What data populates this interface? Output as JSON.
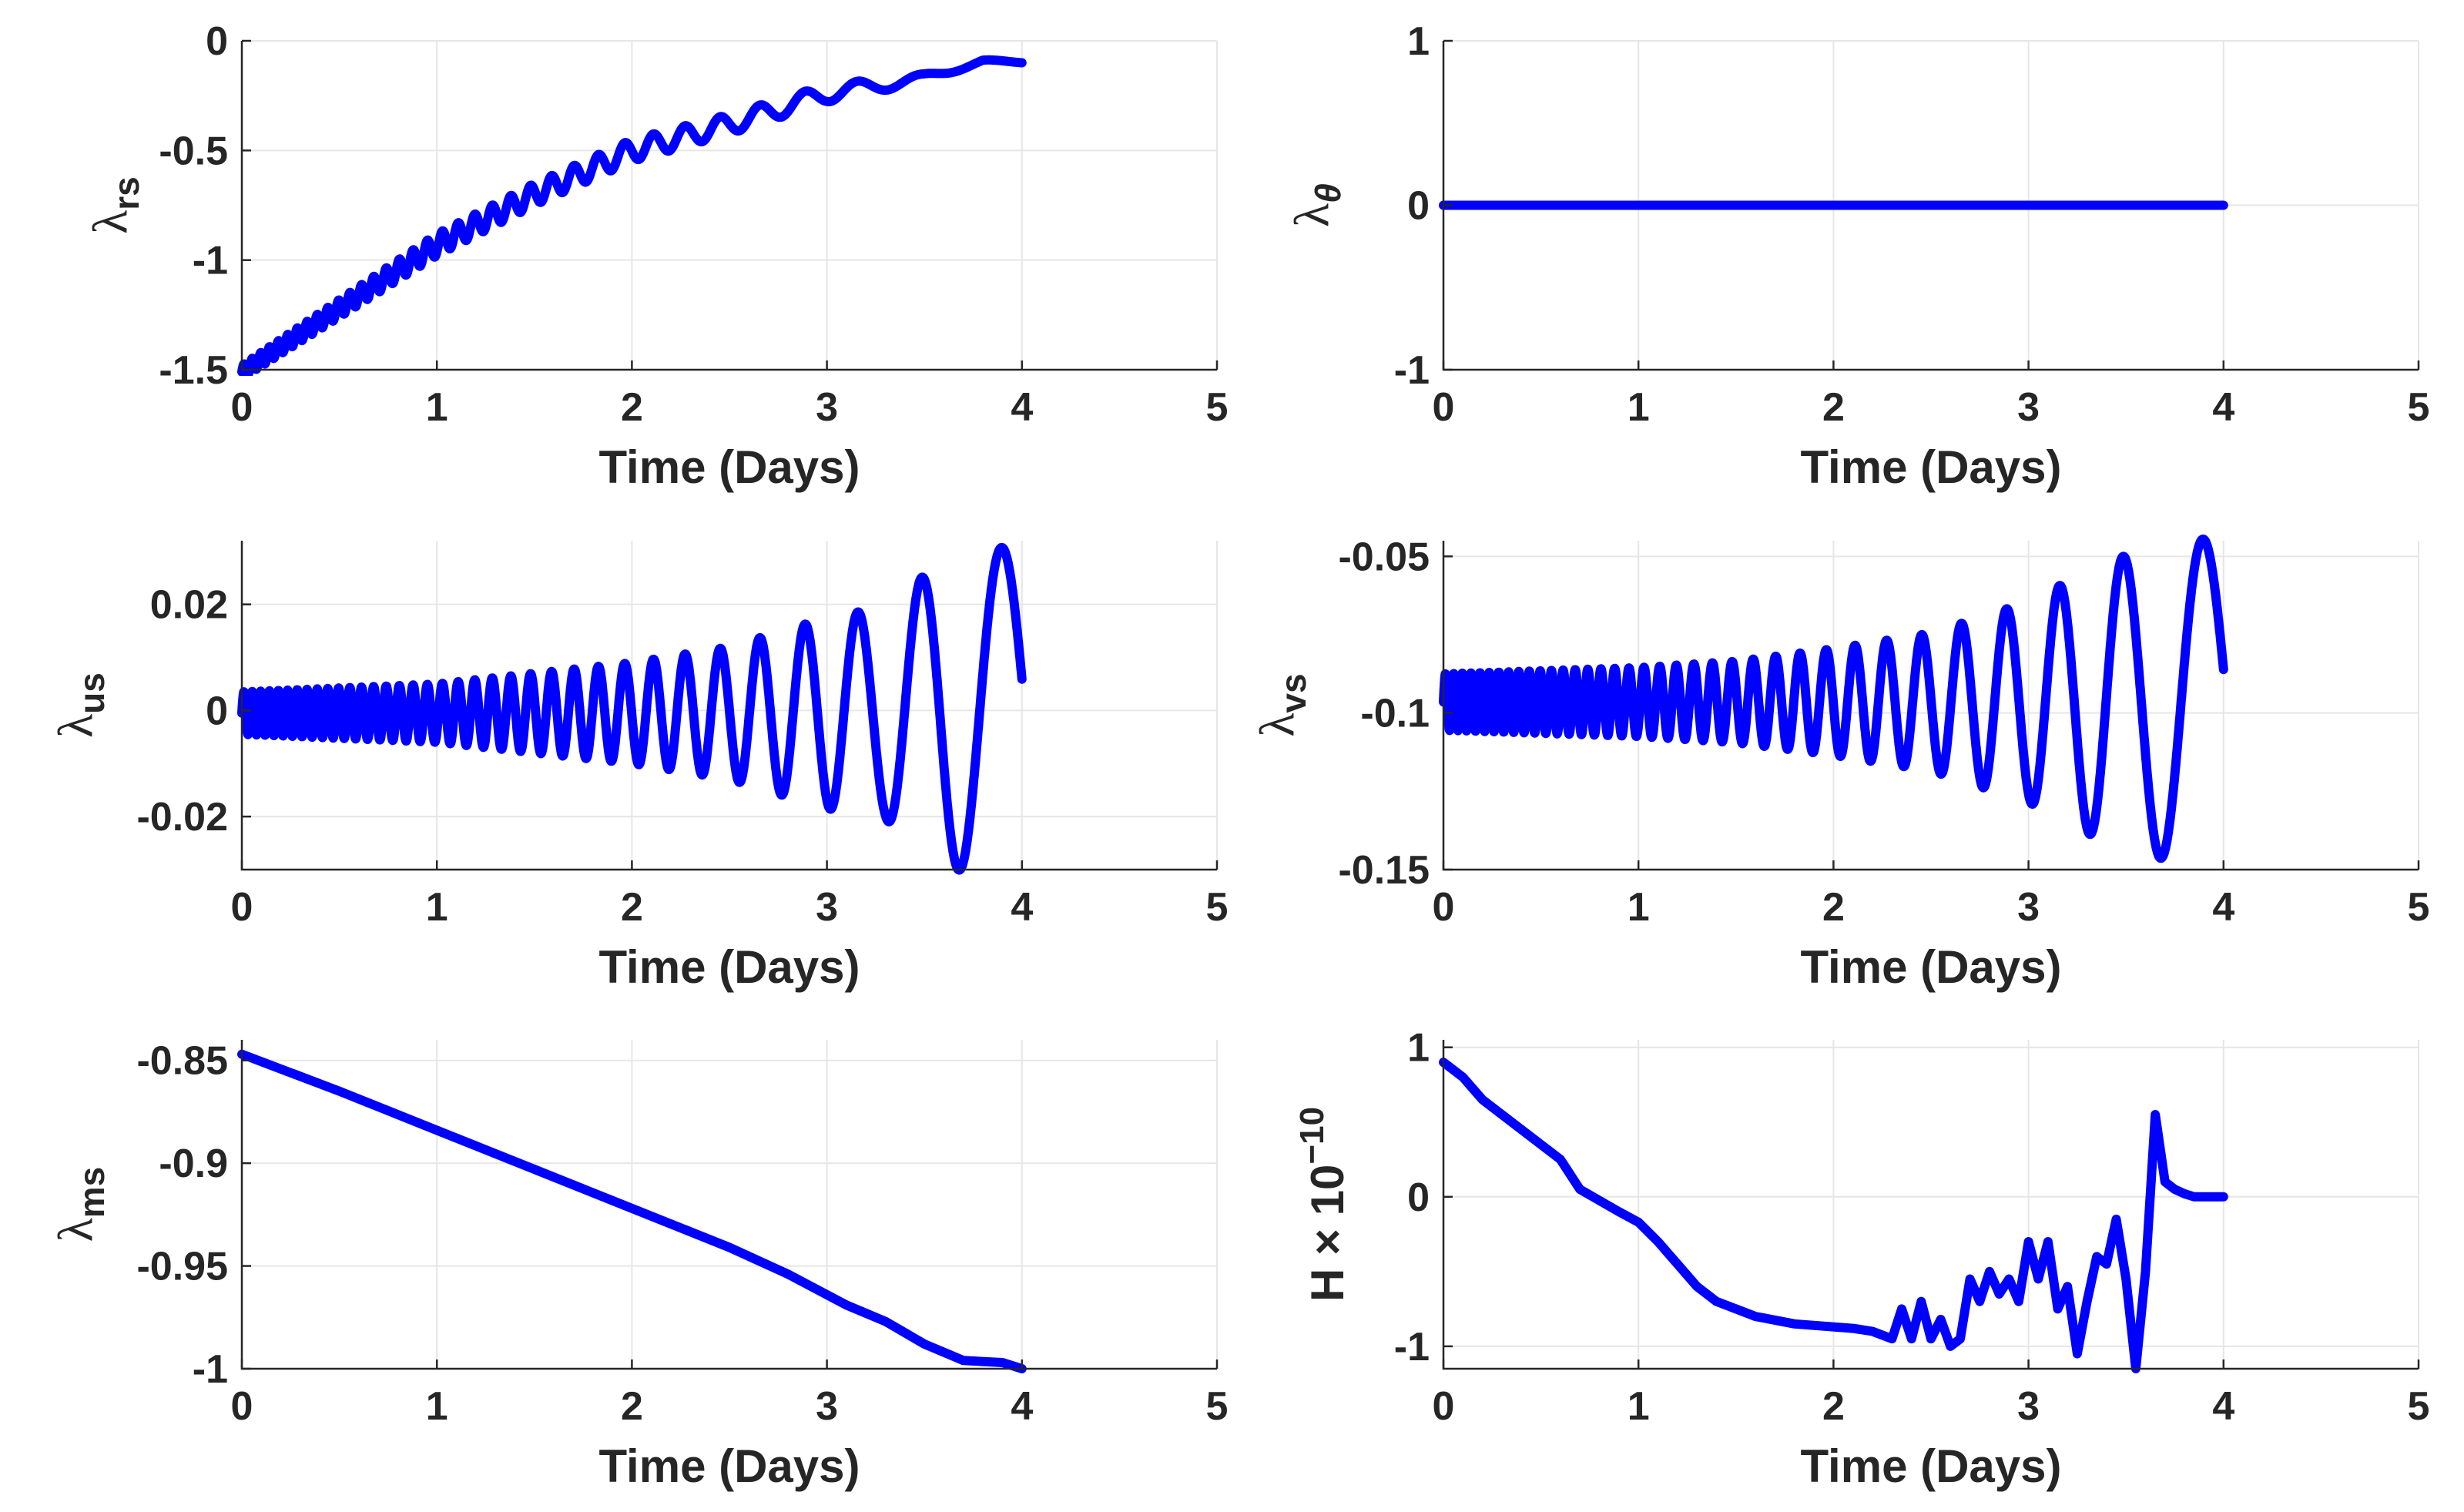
{
  "colors": {
    "series": "#0000ff",
    "axis": "#262626",
    "grid": "#e6e6e6"
  },
  "chart_data": [
    {
      "id": "lambda_rs",
      "type": "line",
      "ylabel": {
        "main": "λ",
        "sub": "rs"
      },
      "xlabel": "Time (Days)",
      "xlim": [
        0,
        5
      ],
      "ylim": [
        -1.5,
        0
      ],
      "xticks": [
        0,
        1,
        2,
        3,
        4,
        5
      ],
      "xtick_labels": [
        "0",
        "1",
        "2",
        "3",
        "4",
        "5"
      ],
      "yticks": [
        -1.5,
        -1,
        -0.5,
        0
      ],
      "ytick_labels": [
        "-1.5",
        "-1",
        "-0.5",
        "0"
      ],
      "grid": true,
      "series": [
        {
          "name": "λ_rs",
          "color": "#0000ff",
          "model": "trend_osc",
          "trend": [
            [
              0,
              -1.51
            ],
            [
              0.5,
              -1.22
            ],
            [
              1,
              -0.93
            ],
            [
              1.5,
              -0.7
            ],
            [
              2,
              -0.5
            ],
            [
              2.5,
              -0.38
            ],
            [
              3,
              -0.24
            ],
            [
              3.5,
              -0.17
            ],
            [
              3.8,
              -0.09
            ],
            [
              4,
              -0.1
            ]
          ],
          "osc_amp": [
            [
              0,
              0.03
            ],
            [
              1,
              0.05
            ],
            [
              2,
              0.05
            ],
            [
              3,
              0.04
            ],
            [
              3.5,
              0.02
            ],
            [
              4,
              0.0
            ]
          ]
        }
      ]
    },
    {
      "id": "lambda_theta",
      "type": "line",
      "ylabel": {
        "main": "λ",
        "sub": "θ"
      },
      "xlabel": "Time (Days)",
      "xlim": [
        0,
        5
      ],
      "ylim": [
        -1,
        1
      ],
      "xticks": [
        0,
        1,
        2,
        3,
        4,
        5
      ],
      "xtick_labels": [
        "0",
        "1",
        "2",
        "3",
        "4",
        "5"
      ],
      "yticks": [
        -1,
        0,
        1
      ],
      "ytick_labels": [
        "-1",
        "0",
        "1"
      ],
      "grid": true,
      "series": [
        {
          "name": "λ_θ",
          "color": "#0000ff",
          "model": "points",
          "x": [
            0,
            4
          ],
          "y": [
            0,
            0
          ]
        }
      ]
    },
    {
      "id": "lambda_us",
      "type": "line",
      "ylabel": {
        "main": "λ",
        "sub": "us"
      },
      "xlabel": "Time (Days)",
      "xlim": [
        0,
        5
      ],
      "ylim": [
        -0.03,
        0.032
      ],
      "xticks": [
        0,
        1,
        2,
        3,
        4,
        5
      ],
      "xtick_labels": [
        "0",
        "1",
        "2",
        "3",
        "4",
        "5"
      ],
      "yticks": [
        -0.02,
        0,
        0.02
      ],
      "ytick_labels": [
        "-0.02",
        "0",
        "0.02"
      ],
      "grid": true,
      "series": [
        {
          "name": "λ_us",
          "color": "#0000ff",
          "model": "trend_osc",
          "trend": [
            [
              0,
              -0.0005
            ],
            [
              4,
              -0.0005
            ]
          ],
          "osc_amp": [
            [
              0,
              0.004
            ],
            [
              1,
              0.0055
            ],
            [
              1.5,
              0.0075
            ],
            [
              2,
              0.0095
            ],
            [
              2.5,
              0.0125
            ],
            [
              3,
              0.018
            ],
            [
              3.3,
              0.02
            ],
            [
              3.6,
              0.029
            ],
            [
              4,
              0.032
            ]
          ]
        }
      ]
    },
    {
      "id": "lambda_vs",
      "type": "line",
      "ylabel": {
        "main": "λ",
        "sub": "vs"
      },
      "xlabel": "Time (Days)",
      "xlim": [
        0,
        5
      ],
      "ylim": [
        -0.15,
        -0.045
      ],
      "xticks": [
        0,
        1,
        2,
        3,
        4,
        5
      ],
      "xtick_labels": [
        "0",
        "1",
        "2",
        "3",
        "4",
        "5"
      ],
      "yticks": [
        -0.15,
        -0.1,
        -0.05
      ],
      "ytick_labels": [
        "-0.15",
        "-0.1",
        "-0.05"
      ],
      "grid": true,
      "series": [
        {
          "name": "λ_vs",
          "color": "#0000ff",
          "model": "trend_osc",
          "trend": [
            [
              0,
              -0.0965
            ],
            [
              4,
              -0.0965
            ]
          ],
          "osc_amp": [
            [
              0,
              0.009
            ],
            [
              1,
              0.011
            ],
            [
              1.5,
              0.013
            ],
            [
              2,
              0.017
            ],
            [
              2.5,
              0.022
            ],
            [
              3,
              0.032
            ],
            [
              3.4,
              0.045
            ],
            [
              3.8,
              0.052
            ],
            [
              4,
              0.052
            ]
          ]
        }
      ]
    },
    {
      "id": "lambda_ms",
      "type": "line",
      "ylabel": {
        "main": "λ",
        "sub": "ms"
      },
      "xlabel": "Time (Days)",
      "xlim": [
        0,
        5
      ],
      "ylim": [
        -1,
        -0.84
      ],
      "xticks": [
        0,
        1,
        2,
        3,
        4,
        5
      ],
      "xtick_labels": [
        "0",
        "1",
        "2",
        "3",
        "4",
        "5"
      ],
      "yticks": [
        -1,
        -0.95,
        -0.9,
        -0.85
      ],
      "ytick_labels": [
        "-1",
        "-0.95",
        "-0.9",
        "-0.85"
      ],
      "grid": true,
      "series": [
        {
          "name": "λ_ms",
          "color": "#0000ff",
          "model": "points",
          "x": [
            0,
            0.5,
            1,
            1.5,
            2,
            2.5,
            2.8,
            3.1,
            3.3,
            3.5,
            3.7,
            3.9,
            4.0
          ],
          "y": [
            -0.847,
            -0.865,
            -0.884,
            -0.903,
            -0.922,
            -0.941,
            -0.954,
            -0.969,
            -0.977,
            -0.988,
            -0.996,
            -0.997,
            -1.0
          ]
        }
      ]
    },
    {
      "id": "hamiltonian",
      "type": "line",
      "ylabel": {
        "main": "H × 10",
        "sup": "−10"
      },
      "xlabel": "Time (Days)",
      "xlim": [
        0,
        5
      ],
      "ylim": [
        -1.15,
        1.05
      ],
      "xticks": [
        0,
        1,
        2,
        3,
        4,
        5
      ],
      "xtick_labels": [
        "0",
        "1",
        "2",
        "3",
        "4",
        "5"
      ],
      "yticks": [
        -1,
        0,
        1
      ],
      "ytick_labels": [
        "-1",
        "0",
        "1"
      ],
      "grid": true,
      "series": [
        {
          "name": "H",
          "color": "#0000ff",
          "model": "points",
          "x": [
            0,
            0.1,
            0.2,
            0.4,
            0.6,
            0.7,
            0.9,
            1.0,
            1.1,
            1.2,
            1.3,
            1.4,
            1.5,
            1.6,
            1.8,
            2.0,
            2.1,
            2.2,
            2.3,
            2.35,
            2.4,
            2.45,
            2.5,
            2.55,
            2.6,
            2.65,
            2.7,
            2.75,
            2.8,
            2.85,
            2.9,
            2.95,
            3.0,
            3.05,
            3.1,
            3.15,
            3.2,
            3.25,
            3.3,
            3.35,
            3.4,
            3.45,
            3.5,
            3.55,
            3.6,
            3.65,
            3.7,
            3.75,
            3.8,
            3.85,
            3.9,
            3.95,
            4.0
          ],
          "y": [
            0.9,
            0.8,
            0.65,
            0.45,
            0.25,
            0.05,
            -0.1,
            -0.17,
            -0.3,
            -0.45,
            -0.6,
            -0.7,
            -0.75,
            -0.8,
            -0.85,
            -0.87,
            -0.88,
            -0.9,
            -0.95,
            -0.75,
            -0.95,
            -0.7,
            -0.95,
            -0.82,
            -1.0,
            -0.95,
            -0.55,
            -0.7,
            -0.5,
            -0.65,
            -0.55,
            -0.7,
            -0.3,
            -0.55,
            -0.3,
            -0.75,
            -0.6,
            -1.05,
            -0.7,
            -0.4,
            -0.45,
            -0.15,
            -0.55,
            -1.15,
            -0.5,
            0.55,
            0.1,
            0.05,
            0.02,
            0.0,
            0.0,
            0.0,
            0.0
          ]
        }
      ]
    }
  ]
}
